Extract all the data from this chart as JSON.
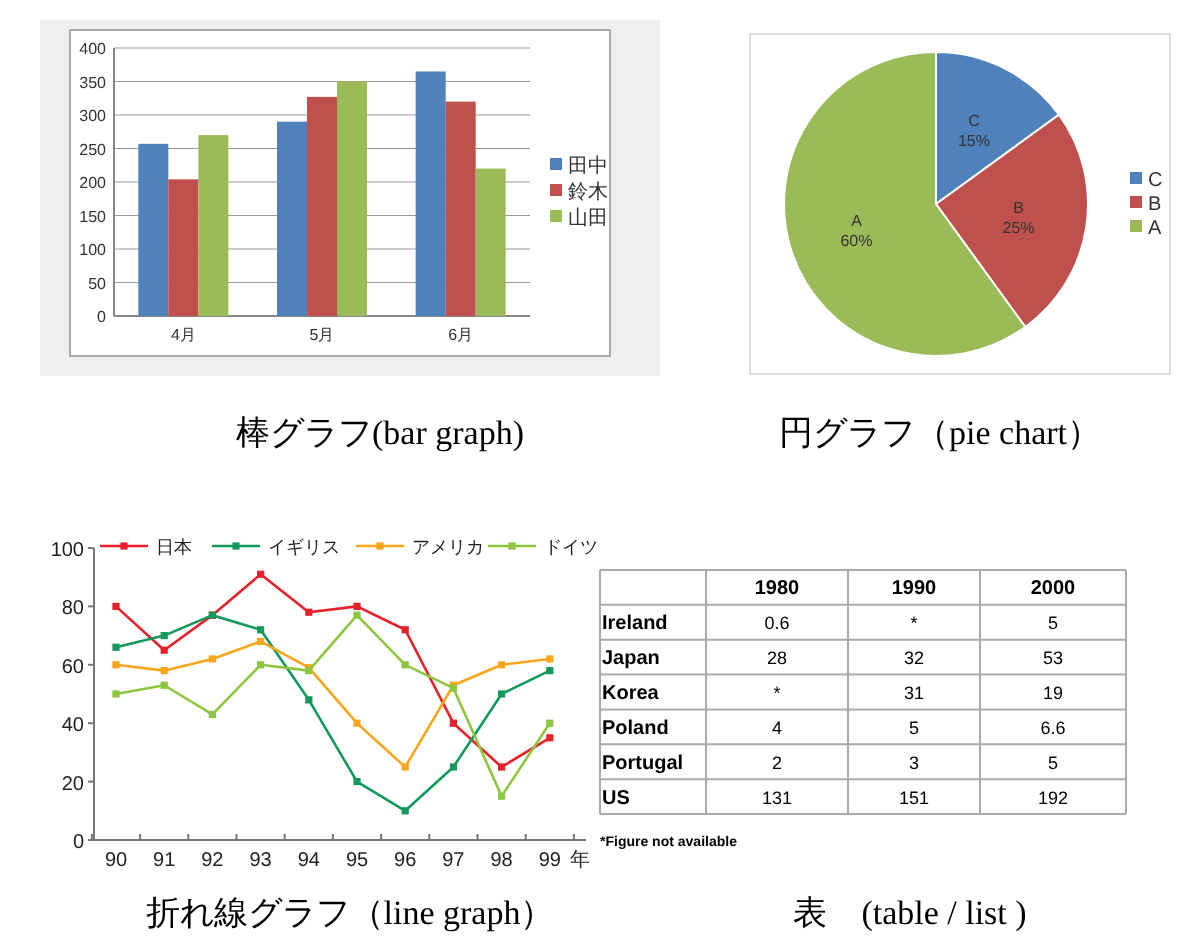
{
  "chart_data": [
    {
      "type": "bar",
      "title": "棒グラフ(bar graph)",
      "categories": [
        "4月",
        "5月",
        "6月"
      ],
      "series": [
        {
          "name": "田中",
          "color": "#4f81bd",
          "values": [
            257,
            290,
            365
          ]
        },
        {
          "name": "鈴木",
          "color": "#c0504d",
          "values": [
            204,
            327,
            320
          ]
        },
        {
          "name": "山田",
          "color": "#9bbb59",
          "values": [
            270,
            350,
            220
          ]
        }
      ],
      "ylim": [
        0,
        400
      ],
      "yticks": [
        0,
        50,
        100,
        150,
        200,
        250,
        300,
        350,
        400
      ],
      "grid": "y",
      "legend": "right"
    },
    {
      "type": "pie",
      "title": "円グラフ（pie chart）",
      "categories": [
        "C",
        "B",
        "A"
      ],
      "values": [
        15,
        25,
        60
      ],
      "value_labels": [
        "15%",
        "25%",
        "60%"
      ],
      "colors": [
        "#4f81bd",
        "#c0504d",
        "#9bbb59"
      ],
      "legend": "right"
    },
    {
      "type": "line",
      "title": "折れ線グラフ（line graph）",
      "xlabel": "年",
      "categories": [
        "90",
        "91",
        "92",
        "93",
        "94",
        "95",
        "96",
        "97",
        "98",
        "99"
      ],
      "series": [
        {
          "name": "日本",
          "color": "#e8202a",
          "values": [
            80,
            65,
            77,
            91,
            78,
            80,
            72,
            40,
            25,
            35
          ]
        },
        {
          "name": "イギリス",
          "color": "#139a5a",
          "values": [
            66,
            70,
            77,
            72,
            48,
            20,
            10,
            25,
            50,
            58
          ]
        },
        {
          "name": "アメリカ",
          "color": "#f9a61a",
          "values": [
            60,
            58,
            62,
            68,
            59,
            40,
            25,
            53,
            60,
            62
          ]
        },
        {
          "name": "ドイツ",
          "color": "#8dc63f",
          "values": [
            50,
            53,
            43,
            60,
            58,
            77,
            60,
            52,
            15,
            40
          ]
        }
      ],
      "ylim": [
        0,
        100
      ],
      "yticks": [
        0,
        20,
        40,
        60,
        80,
        100
      ],
      "legend": "top",
      "marker": "square",
      "grid": false
    },
    {
      "type": "other",
      "title": "表　(table / list )",
      "categories": [
        "1980",
        "1990",
        "2000"
      ],
      "y_categories": [
        "Ireland",
        "Japan",
        "Korea",
        "Poland",
        "Portugal",
        "US"
      ],
      "cell_labels": [
        [
          "0.6",
          "*",
          "5"
        ],
        [
          "28",
          "32",
          "53"
        ],
        [
          "*",
          "31",
          "19"
        ],
        [
          "4",
          "5",
          "6.6"
        ],
        [
          "2",
          "3",
          "5"
        ],
        [
          "131",
          "151",
          "192"
        ]
      ],
      "annotations": [
        "*Figure not available"
      ]
    }
  ]
}
